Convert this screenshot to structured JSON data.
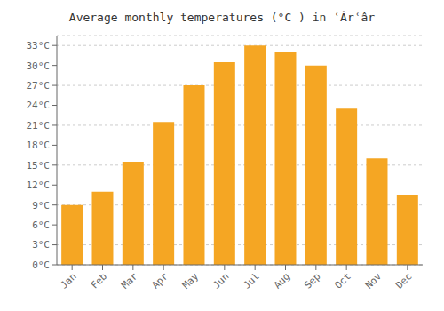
{
  "chart_data": {
    "type": "bar",
    "title": "Average monthly temperatures (°C ) in ʿÂrʿâr",
    "categories": [
      "Jan",
      "Feb",
      "Mar",
      "Apr",
      "May",
      "Jun",
      "Jul",
      "Aug",
      "Sep",
      "Oct",
      "Nov",
      "Dec"
    ],
    "values": [
      9,
      11,
      15.5,
      21.5,
      27,
      30.5,
      33,
      32,
      30,
      23.5,
      16,
      10.5
    ],
    "color": "#F5A623",
    "ylim": [
      0,
      34.5
    ],
    "yticks": [
      {
        "value": 0,
        "label": "0°C"
      },
      {
        "value": 3,
        "label": "3°C"
      },
      {
        "value": 6,
        "label": "6°C"
      },
      {
        "value": 9,
        "label": "9°C"
      },
      {
        "value": 12,
        "label": "12°C"
      },
      {
        "value": 15,
        "label": "15°C"
      },
      {
        "value": 18,
        "label": "18°C"
      },
      {
        "value": 21,
        "label": "21°C"
      },
      {
        "value": 24,
        "label": "24°C"
      },
      {
        "value": 27,
        "label": "27°C"
      },
      {
        "value": 30,
        "label": "30°C"
      },
      {
        "value": 33,
        "label": "33°C"
      }
    ],
    "grid": true
  }
}
